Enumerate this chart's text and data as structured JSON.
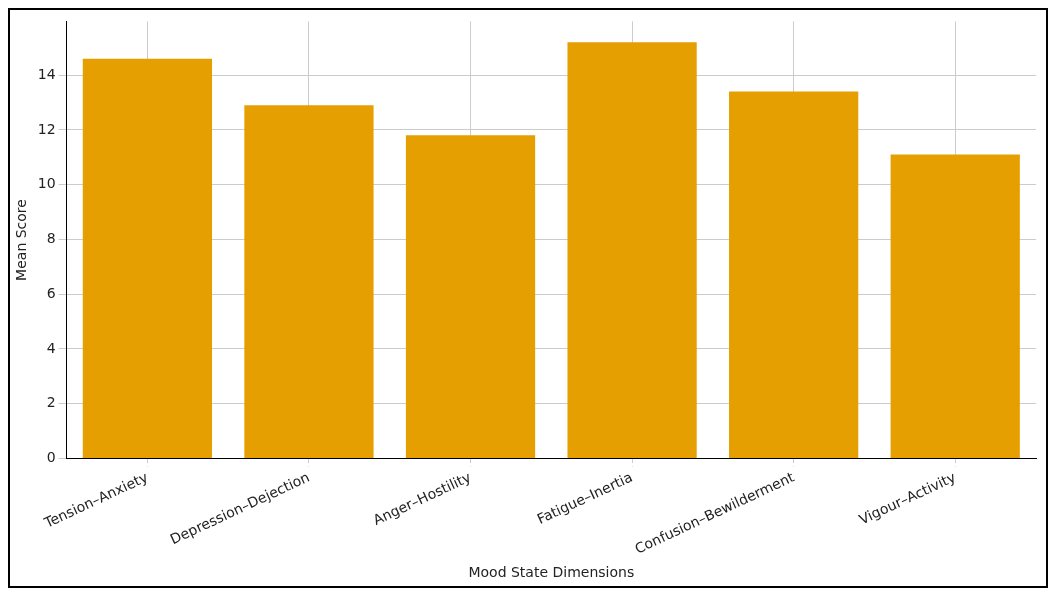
{
  "chart_data": {
    "type": "bar",
    "xlabel": "Mood State Dimensions",
    "ylabel": "Mean Score",
    "categories": [
      "Tension–Anxiety",
      "Depression–Dejection",
      "Anger–Hostility",
      "Fatigue–Inertia",
      "Confusion–Bewilderment",
      "Vigour–Activity"
    ],
    "values": [
      14.6,
      12.9,
      11.8,
      15.2,
      13.4,
      11.1
    ],
    "color": "#e69f00",
    "ylim": [
      0,
      15.96
    ],
    "yticks": [
      0,
      2,
      4,
      6,
      8,
      10,
      12,
      14
    ],
    "grid": true,
    "legend": false
  }
}
